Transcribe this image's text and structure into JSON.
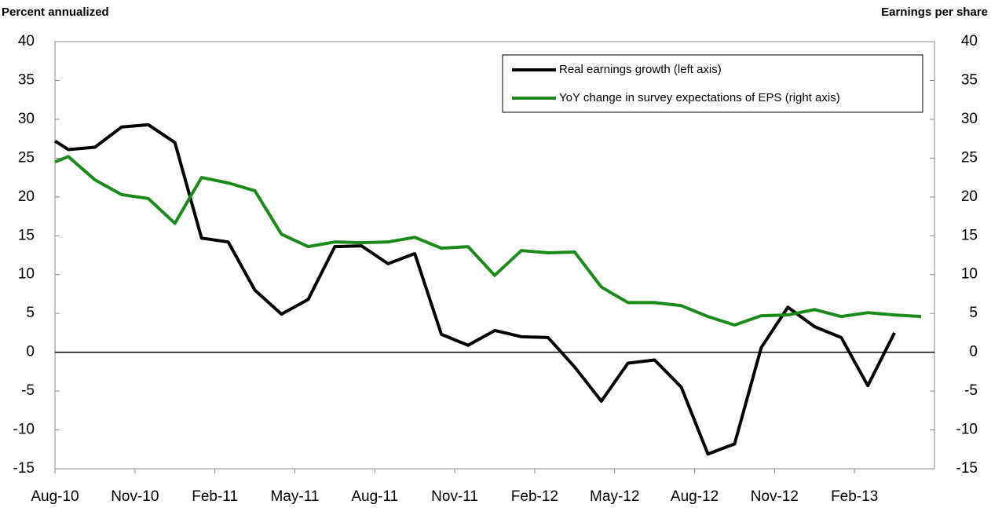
{
  "chart_data": {
    "type": "line",
    "left_axis_label": "Percent annualized",
    "right_axis_label": "Earnings per share",
    "x": [
      0,
      0.5,
      1.5,
      2.5,
      3.5,
      4.5,
      5.5,
      6.5,
      7.5,
      8.5,
      9.5,
      10.5,
      11.5,
      12.5,
      13.5,
      14.5,
      15.5,
      16.5,
      17.5,
      18.5,
      19.5,
      20.5,
      21.5,
      22.5,
      23.5,
      24.5,
      25.5,
      26.5,
      27.5,
      28.5,
      29.5,
      30.5,
      31.5,
      32.5
    ],
    "xlim": [
      0,
      33
    ],
    "xticks": [
      {
        "value": 0,
        "label": "Aug-10"
      },
      {
        "value": 3,
        "label": "Nov-10"
      },
      {
        "value": 6,
        "label": "Feb-11"
      },
      {
        "value": 9,
        "label": "May-11"
      },
      {
        "value": 12,
        "label": "Aug-11"
      },
      {
        "value": 15,
        "label": "Nov-11"
      },
      {
        "value": 18,
        "label": "Feb-12"
      },
      {
        "value": 21,
        "label": "May-12"
      },
      {
        "value": 24,
        "label": "Aug-12"
      },
      {
        "value": 27,
        "label": "Nov-12"
      },
      {
        "value": 30,
        "label": "Feb-13"
      }
    ],
    "ylim": [
      -15,
      40
    ],
    "yticks": [
      -15,
      -10,
      -5,
      0,
      5,
      10,
      15,
      20,
      25,
      30,
      35,
      40
    ],
    "y2lim": [
      -15,
      40
    ],
    "y2ticks": [
      -15,
      -10,
      -5,
      0,
      5,
      10,
      15,
      20,
      25,
      30,
      35,
      40
    ],
    "legend": "top-right",
    "series": [
      {
        "name": "Real earnings growth (left axis)",
        "color": "#000000",
        "values": [
          27.2,
          26.1,
          26.4,
          29.0,
          29.3,
          27.0,
          14.7,
          14.2,
          8.0,
          4.9,
          6.8,
          13.6,
          13.7,
          11.4,
          12.7,
          2.3,
          0.9,
          2.8,
          2.0,
          1.9,
          -1.9,
          -6.3,
          -1.4,
          -1.0,
          -4.5,
          -13.1,
          -11.8,
          0.6,
          5.8,
          3.3,
          1.9,
          -4.3,
          2.5,
          null
        ]
      },
      {
        "name": "YoY change in survey expectations of EPS (right axis)",
        "color": "#1a8a1a",
        "axis": "y2",
        "values": [
          24.5,
          25.2,
          22.2,
          20.3,
          19.8,
          16.6,
          22.5,
          21.8,
          20.8,
          15.2,
          13.6,
          14.2,
          14.1,
          14.2,
          14.8,
          13.4,
          13.6,
          9.9,
          13.1,
          12.8,
          12.9,
          8.4,
          6.4,
          6.4,
          6.0,
          4.6,
          3.5,
          4.7,
          4.8,
          5.5,
          4.6,
          5.1,
          4.8,
          4.6
        ]
      }
    ]
  }
}
